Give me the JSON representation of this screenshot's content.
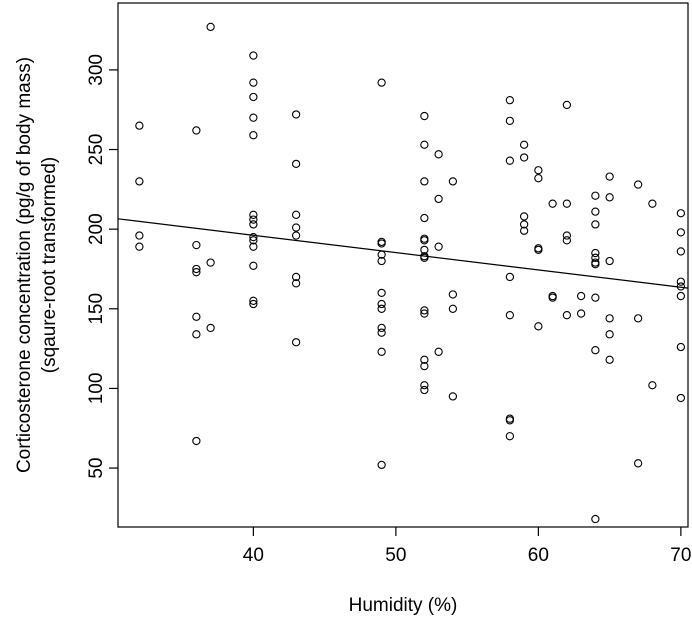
{
  "chart_data": {
    "type": "scatter",
    "title": "",
    "xlabel": "Humidity (%)",
    "ylabel_line1": "Corticosterone concentration (pg/g of body mass)",
    "ylabel_line2": "(sqaure-root transformed)",
    "xlim": [
      30.5,
      70.5
    ],
    "ylim": [
      13,
      342
    ],
    "xticks": [
      40,
      50,
      60,
      70
    ],
    "yticks": [
      50,
      100,
      150,
      200,
      250,
      300
    ],
    "grid": false,
    "legend": "none",
    "point_style": "open circle",
    "regression_line": {
      "x1": 30.5,
      "y1": 206.5,
      "x2": 70.5,
      "y2": 163.0
    },
    "points": [
      {
        "x": 32,
        "y": 265
      },
      {
        "x": 32,
        "y": 230
      },
      {
        "x": 32,
        "y": 196
      },
      {
        "x": 32,
        "y": 189
      },
      {
        "x": 36,
        "y": 262
      },
      {
        "x": 36,
        "y": 190
      },
      {
        "x": 36,
        "y": 175
      },
      {
        "x": 36,
        "y": 173
      },
      {
        "x": 36,
        "y": 145
      },
      {
        "x": 36,
        "y": 134
      },
      {
        "x": 36,
        "y": 67
      },
      {
        "x": 37,
        "y": 327
      },
      {
        "x": 37,
        "y": 179
      },
      {
        "x": 37,
        "y": 138
      },
      {
        "x": 40,
        "y": 309
      },
      {
        "x": 40,
        "y": 292
      },
      {
        "x": 40,
        "y": 283
      },
      {
        "x": 40,
        "y": 270
      },
      {
        "x": 40,
        "y": 259
      },
      {
        "x": 40,
        "y": 209
      },
      {
        "x": 40,
        "y": 206
      },
      {
        "x": 40,
        "y": 203
      },
      {
        "x": 40,
        "y": 195
      },
      {
        "x": 40,
        "y": 193
      },
      {
        "x": 40,
        "y": 189
      },
      {
        "x": 40,
        "y": 177
      },
      {
        "x": 40,
        "y": 155
      },
      {
        "x": 40,
        "y": 153
      },
      {
        "x": 43,
        "y": 272
      },
      {
        "x": 43,
        "y": 241
      },
      {
        "x": 43,
        "y": 209
      },
      {
        "x": 43,
        "y": 201
      },
      {
        "x": 43,
        "y": 196
      },
      {
        "x": 43,
        "y": 170
      },
      {
        "x": 43,
        "y": 166
      },
      {
        "x": 43,
        "y": 129
      },
      {
        "x": 49,
        "y": 292
      },
      {
        "x": 49,
        "y": 192
      },
      {
        "x": 49,
        "y": 191
      },
      {
        "x": 49,
        "y": 184
      },
      {
        "x": 49,
        "y": 180
      },
      {
        "x": 49,
        "y": 160
      },
      {
        "x": 49,
        "y": 153
      },
      {
        "x": 49,
        "y": 150
      },
      {
        "x": 49,
        "y": 138
      },
      {
        "x": 49,
        "y": 135
      },
      {
        "x": 49,
        "y": 123
      },
      {
        "x": 49,
        "y": 52
      },
      {
        "x": 52,
        "y": 271
      },
      {
        "x": 52,
        "y": 253
      },
      {
        "x": 52,
        "y": 230
      },
      {
        "x": 52,
        "y": 207
      },
      {
        "x": 52,
        "y": 194
      },
      {
        "x": 52,
        "y": 193
      },
      {
        "x": 52,
        "y": 187
      },
      {
        "x": 52,
        "y": 183
      },
      {
        "x": 52,
        "y": 182
      },
      {
        "x": 52,
        "y": 149
      },
      {
        "x": 52,
        "y": 147
      },
      {
        "x": 52,
        "y": 118
      },
      {
        "x": 52,
        "y": 114
      },
      {
        "x": 52,
        "y": 102
      },
      {
        "x": 52,
        "y": 99
      },
      {
        "x": 53,
        "y": 247
      },
      {
        "x": 53,
        "y": 219
      },
      {
        "x": 53,
        "y": 189
      },
      {
        "x": 53,
        "y": 123
      },
      {
        "x": 54,
        "y": 230
      },
      {
        "x": 54,
        "y": 159
      },
      {
        "x": 54,
        "y": 150
      },
      {
        "x": 54,
        "y": 95
      },
      {
        "x": 58,
        "y": 281
      },
      {
        "x": 58,
        "y": 268
      },
      {
        "x": 58,
        "y": 243
      },
      {
        "x": 58,
        "y": 170
      },
      {
        "x": 58,
        "y": 146
      },
      {
        "x": 58,
        "y": 81
      },
      {
        "x": 58,
        "y": 80
      },
      {
        "x": 58,
        "y": 70
      },
      {
        "x": 59,
        "y": 253
      },
      {
        "x": 59,
        "y": 245
      },
      {
        "x": 59,
        "y": 208
      },
      {
        "x": 59,
        "y": 203
      },
      {
        "x": 59,
        "y": 199
      },
      {
        "x": 60,
        "y": 237
      },
      {
        "x": 60,
        "y": 232
      },
      {
        "x": 60,
        "y": 188
      },
      {
        "x": 60,
        "y": 187
      },
      {
        "x": 60,
        "y": 139
      },
      {
        "x": 61,
        "y": 216
      },
      {
        "x": 61,
        "y": 158
      },
      {
        "x": 61,
        "y": 157
      },
      {
        "x": 62,
        "y": 278
      },
      {
        "x": 62,
        "y": 216
      },
      {
        "x": 62,
        "y": 196
      },
      {
        "x": 62,
        "y": 193
      },
      {
        "x": 62,
        "y": 146
      },
      {
        "x": 63,
        "y": 158
      },
      {
        "x": 63,
        "y": 147
      },
      {
        "x": 64,
        "y": 221
      },
      {
        "x": 64,
        "y": 211
      },
      {
        "x": 64,
        "y": 203
      },
      {
        "x": 64,
        "y": 185
      },
      {
        "x": 64,
        "y": 182
      },
      {
        "x": 64,
        "y": 179
      },
      {
        "x": 64,
        "y": 178
      },
      {
        "x": 64,
        "y": 157
      },
      {
        "x": 64,
        "y": 124
      },
      {
        "x": 64,
        "y": 18
      },
      {
        "x": 65,
        "y": 233
      },
      {
        "x": 65,
        "y": 220
      },
      {
        "x": 65,
        "y": 180
      },
      {
        "x": 65,
        "y": 144
      },
      {
        "x": 65,
        "y": 134
      },
      {
        "x": 65,
        "y": 118
      },
      {
        "x": 67,
        "y": 228
      },
      {
        "x": 67,
        "y": 144
      },
      {
        "x": 67,
        "y": 53
      },
      {
        "x": 68,
        "y": 216
      },
      {
        "x": 68,
        "y": 102
      },
      {
        "x": 70,
        "y": 210
      },
      {
        "x": 70,
        "y": 198
      },
      {
        "x": 70,
        "y": 186
      },
      {
        "x": 70,
        "y": 167
      },
      {
        "x": 70,
        "y": 164
      },
      {
        "x": 70,
        "y": 158
      },
      {
        "x": 70,
        "y": 126
      },
      {
        "x": 70,
        "y": 94
      }
    ]
  }
}
